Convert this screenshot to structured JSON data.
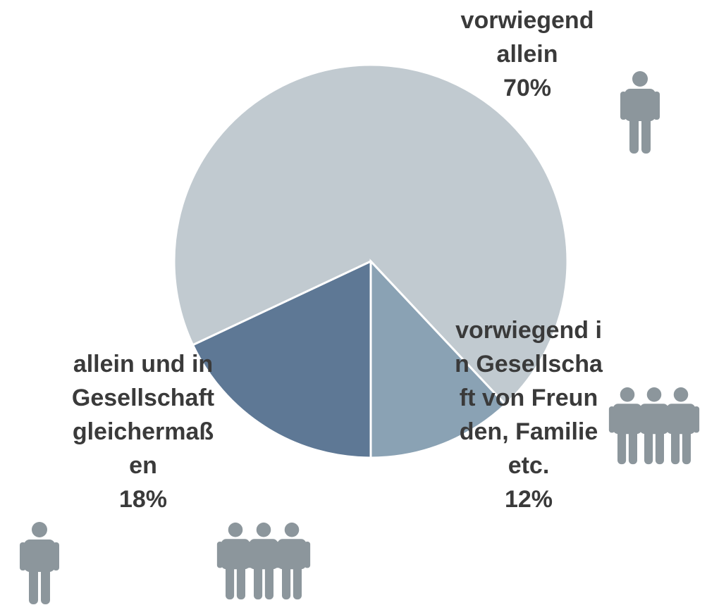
{
  "chart_data": {
    "type": "pie",
    "categories": [
      "allein und in Gesellschaft gleichermaßen",
      "vorwiegend allein",
      "vorwiegend in Gesellschaft von Freunden, Familie etc."
    ],
    "values": [
      18,
      70,
      12
    ],
    "value_labels": [
      "18%",
      "70%",
      "12%"
    ],
    "colors": [
      "#5e7895",
      "#c1cad0",
      "#8aa2b4"
    ]
  }
}
